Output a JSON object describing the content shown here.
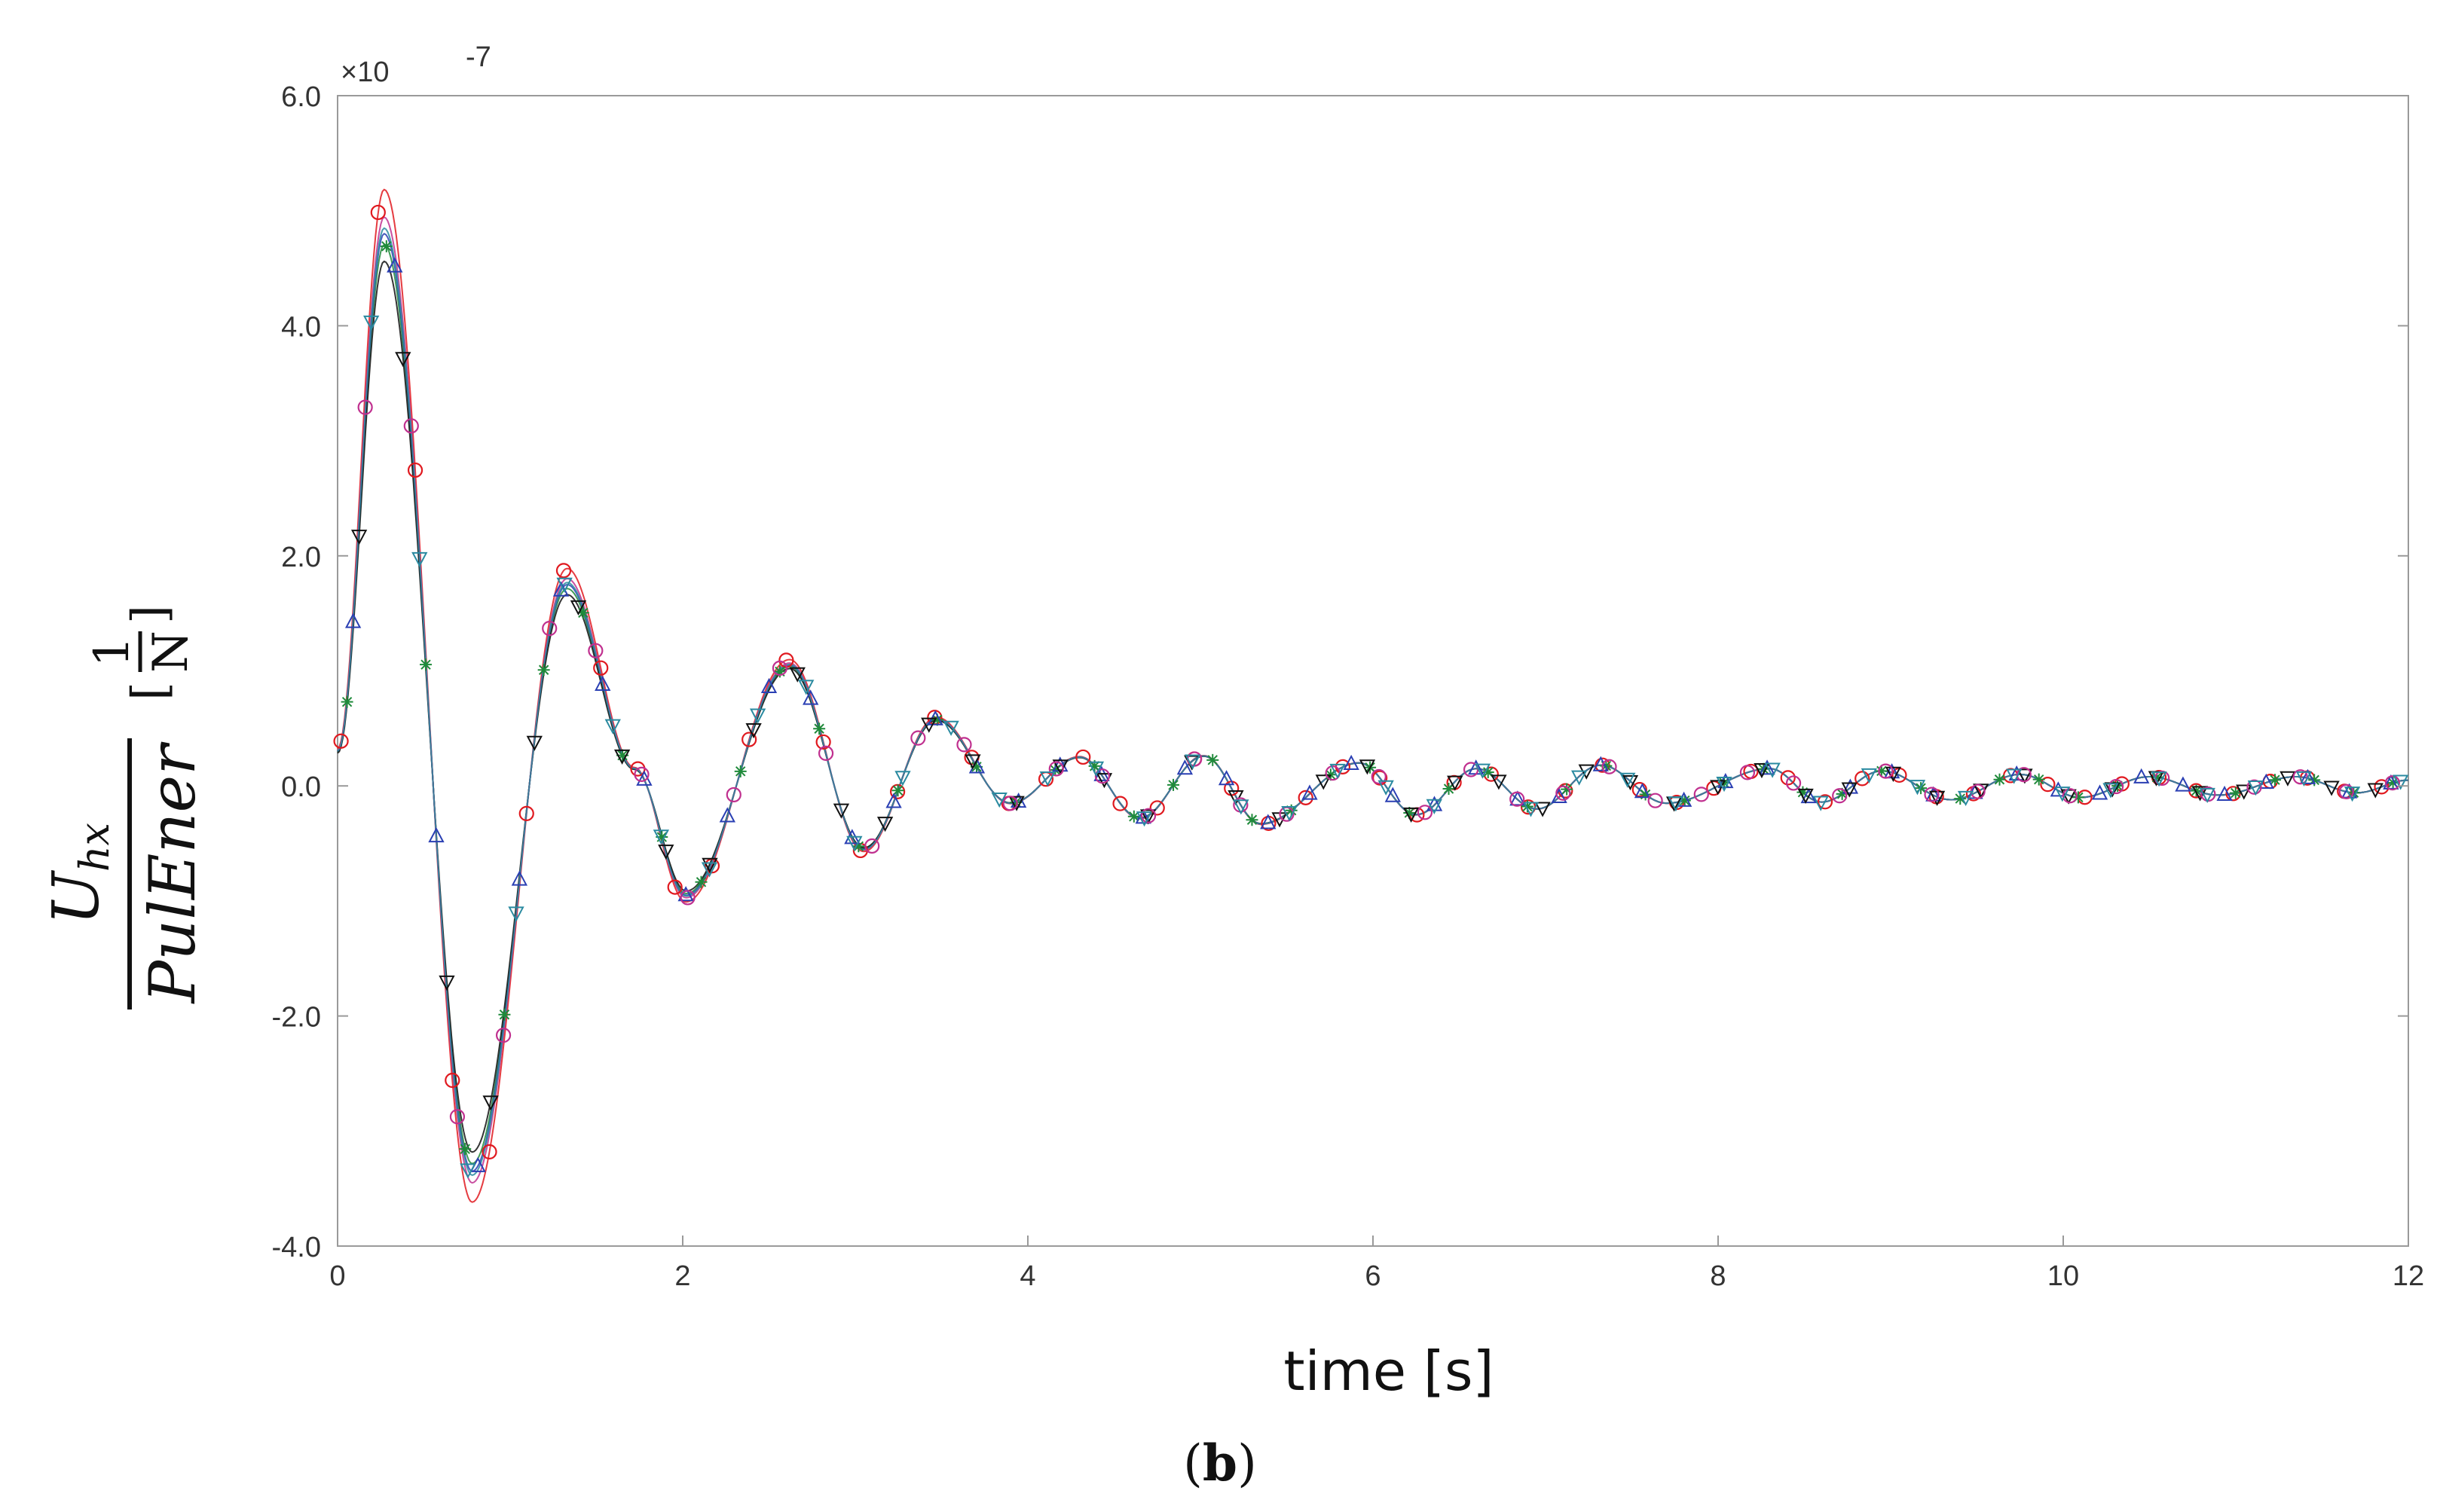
{
  "chart_data": {
    "type": "line",
    "xlabel": "time [s]",
    "ylabel_num": "U",
    "ylabel_num_sub": "hx",
    "ylabel_den": "PulEner",
    "ylabel_unit_num": "1",
    "ylabel_unit_den": "N",
    "ylabel_unit_open": "[",
    "ylabel_unit_close": "]",
    "y_multiplier": "×10",
    "y_exponent": "-7",
    "caption_open": "(",
    "caption_letter": "b",
    "caption_close": ")",
    "xlim": [
      0,
      12
    ],
    "ylim": [
      -4.0,
      6.0
    ],
    "x_ticks": [
      "0",
      "2",
      "4",
      "6",
      "8",
      "10",
      "12"
    ],
    "y_ticks": [
      "-4.0",
      "-2.0",
      "0.0",
      "2.0",
      "4.0",
      "6.0"
    ],
    "grid": false,
    "series_style": {
      "colors": [
        "#e0191f",
        "#1f8a3a",
        "#2a3fb3",
        "#111111",
        "#c0308f",
        "#2a8aa0"
      ],
      "markers": [
        "circle",
        "asterisk",
        "triangle-up",
        "triangle-down",
        "circle",
        "triangle-down"
      ]
    },
    "response_params": {
      "start_value": 0.3,
      "peaks": [
        [
          0.27,
          4.8
        ],
        [
          0.78,
          -3.35
        ],
        [
          1.33,
          1.75
        ],
        [
          1.72,
          0.15
        ],
        [
          2.02,
          -0.95
        ],
        [
          2.62,
          1.05
        ],
        [
          3.05,
          -0.55
        ],
        [
          3.47,
          0.58
        ],
        [
          3.9,
          -0.15
        ],
        [
          4.3,
          0.25
        ],
        [
          4.65,
          -0.28
        ],
        [
          5.02,
          0.26
        ],
        [
          5.35,
          -0.33
        ],
        [
          5.92,
          0.2
        ],
        [
          6.25,
          -0.25
        ],
        [
          6.6,
          0.15
        ],
        [
          6.95,
          -0.2
        ],
        [
          7.32,
          0.18
        ],
        [
          7.7,
          -0.15
        ],
        [
          8.3,
          0.15
        ],
        [
          8.6,
          -0.14
        ],
        [
          8.95,
          0.13
        ],
        [
          9.35,
          -0.12
        ],
        [
          9.75,
          0.1
        ],
        [
          10.1,
          -0.1
        ],
        [
          10.5,
          0.08
        ],
        [
          10.9,
          -0.08
        ],
        [
          11.35,
          0.08
        ],
        [
          11.7,
          -0.06
        ],
        [
          12.0,
          0.05
        ]
      ],
      "series_scales": [
        1.08,
        0.98,
        1.0,
        0.95,
        1.03,
        1.01
      ]
    }
  }
}
